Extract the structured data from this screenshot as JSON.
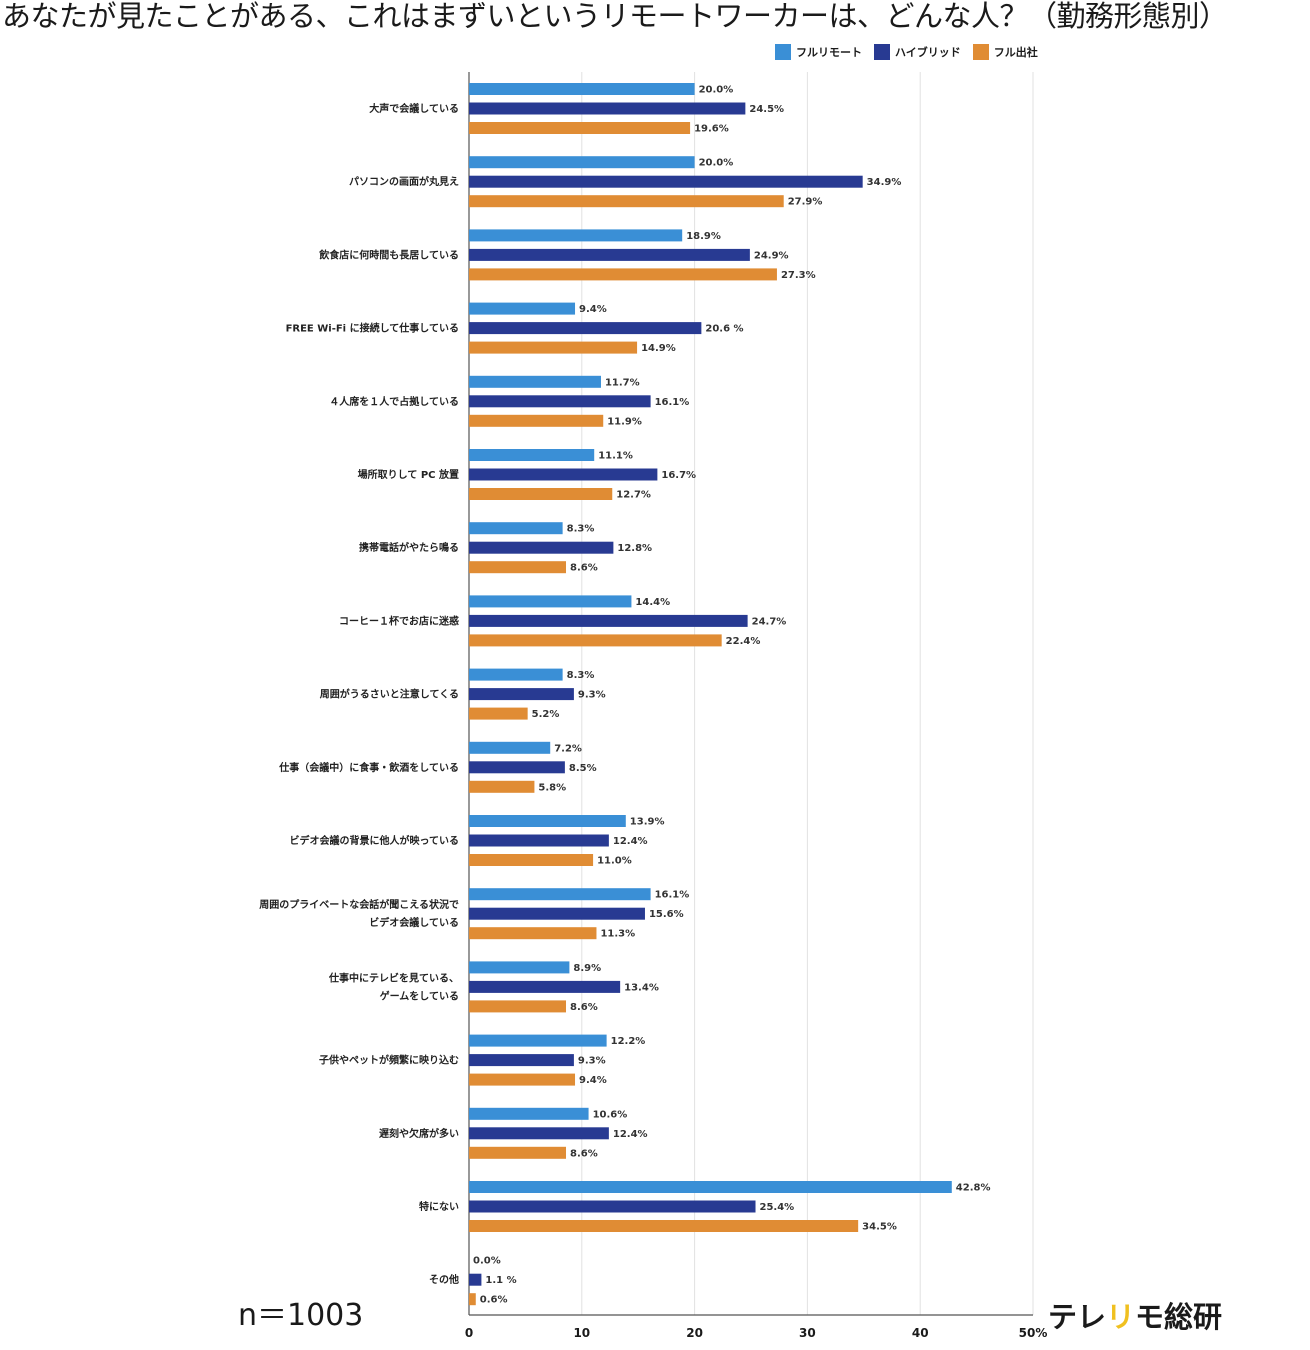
{
  "title": "あなたが見たことがある、これはまずいというリモートワーカーは、どんな人？（勤務形態別）",
  "sample_size": "n＝1003",
  "brand": {
    "part1": "テレ",
    "part2": "リ",
    "part3": "モ総研"
  },
  "colors": {
    "fullremote": "#3a8fd6",
    "hybrid": "#283a92",
    "fulloffice": "#e08c34",
    "accent": "#f0c020"
  },
  "chart_data": {
    "type": "bar",
    "orientation": "horizontal",
    "categories": [
      "大声で会議している",
      "パソコンの画面が丸見え",
      "飲食店に何時間も長居している",
      "FREE Wi-Fi に接続して仕事している",
      "４人席を１人で占拠している",
      "場所取りして PC 放置",
      "携帯電話がやたら鳴る",
      "コーヒー１杯でお店に迷惑",
      "周囲がうるさいと注意してくる",
      "仕事（会議中）に食事・飲酒をしている",
      "ビデオ会議の背景に他人が映っている",
      "周囲のプライベートな会話が聞こえる状況で\nビデオ会議している",
      "仕事中にテレビを見ている、\nゲームをしている",
      "子供やペットが頻繁に映り込む",
      "遅刻や欠席が多い",
      "特にない",
      "その他"
    ],
    "series": [
      {
        "name": "フルリモート",
        "values": [
          20.0,
          20.0,
          18.9,
          9.4,
          11.7,
          11.1,
          8.3,
          14.4,
          8.3,
          7.2,
          13.9,
          16.1,
          8.9,
          12.2,
          10.6,
          42.8,
          0.0
        ]
      },
      {
        "name": "ハイブリッド",
        "values": [
          24.5,
          34.9,
          24.9,
          20.6,
          16.1,
          16.7,
          12.8,
          24.7,
          9.3,
          8.5,
          12.4,
          15.6,
          13.4,
          9.3,
          12.4,
          25.4,
          1.1
        ]
      },
      {
        "name": "フル出社",
        "values": [
          19.6,
          27.9,
          27.3,
          14.9,
          11.9,
          12.7,
          8.6,
          22.4,
          5.2,
          5.8,
          11.0,
          11.3,
          8.6,
          9.4,
          8.6,
          34.5,
          0.6
        ]
      }
    ],
    "value_labels": [
      [
        "20.0%",
        "20.0%",
        "18.9%",
        "9.4%",
        "11.7%",
        "11.1%",
        "8.3%",
        "14.4%",
        "8.3%",
        "7.2%",
        "13.9%",
        "16.1%",
        "8.9%",
        "12.2%",
        "10.6%",
        "42.8%",
        "0.0%"
      ],
      [
        "24.5%",
        "34.9%",
        "24.9%",
        "20.6 %",
        "16.1%",
        "16.7%",
        "12.8%",
        "24.7%",
        "9.3%",
        "8.5%",
        "12.4%",
        "15.6%",
        "13.4%",
        "9.3%",
        "12.4%",
        "25.4%",
        "1.1 %"
      ],
      [
        "19.6%",
        "27.9%",
        "27.3%",
        "14.9%",
        "11.9%",
        "12.7%",
        "8.6%",
        "22.4%",
        "5.2%",
        "5.8%",
        "11.0%",
        "11.3%",
        "8.6%",
        "9.4%",
        "8.6%",
        "34.5%",
        "0.6%"
      ]
    ],
    "x_ticks": [
      "0",
      "10",
      "20",
      "30",
      "40",
      "50%"
    ],
    "xlim": [
      0,
      50
    ],
    "grid": true,
    "legend_position": "top-right"
  }
}
